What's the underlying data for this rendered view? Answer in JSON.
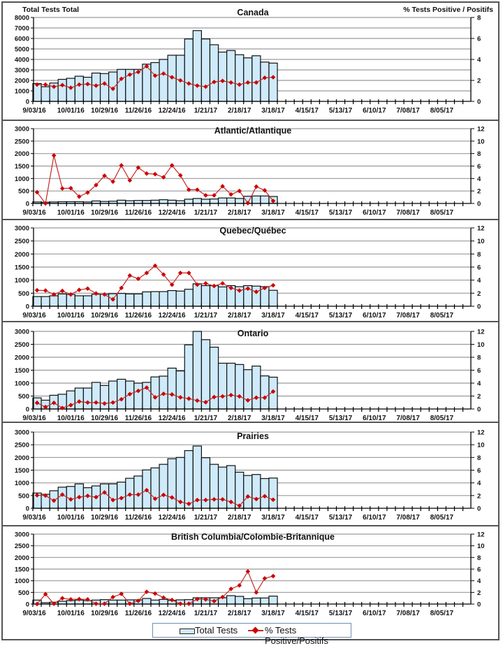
{
  "chart_data": [
    {
      "type": "bar",
      "title": "Canada",
      "ylabel": "Total Tests Total",
      "y2label": "% Tests Positive / Positifs",
      "ylim": [
        0,
        8000
      ],
      "yticks": [
        0,
        1000,
        2000,
        3000,
        4000,
        5000,
        6000,
        7000,
        8000
      ],
      "y2lim": [
        0,
        8
      ],
      "y2ticks": [
        0,
        2,
        4,
        6,
        8
      ],
      "series": [
        {
          "name": "Total Tests",
          "type": "bar",
          "values": [
            1700,
            1400,
            1750,
            2100,
            2200,
            2400,
            2300,
            2700,
            2650,
            2800,
            3050,
            3050,
            3050,
            3550,
            3700,
            4000,
            4400,
            4400,
            5950,
            6750,
            5950,
            5400,
            4700,
            4850,
            4450,
            4150,
            4350,
            3750,
            3650
          ]
        },
        {
          "name": "% Tests Positive/Positifs",
          "type": "line",
          "values": [
            1.6,
            1.6,
            1.4,
            1.55,
            1.3,
            1.6,
            1.65,
            1.5,
            1.7,
            1.2,
            2.15,
            2.55,
            2.8,
            3.35,
            2.45,
            2.65,
            2.3,
            2.0,
            1.7,
            1.5,
            1.4,
            1.85,
            1.95,
            1.8,
            1.6,
            1.8,
            1.8,
            2.25,
            2.3
          ]
        }
      ]
    },
    {
      "type": "bar",
      "title": "Atlantic/Atlantique",
      "ylim": [
        0,
        3000
      ],
      "yticks": [
        0,
        500,
        1000,
        1500,
        2000,
        2500,
        3000
      ],
      "y2lim": [
        0,
        12
      ],
      "y2ticks": [
        0,
        2,
        4,
        6,
        8,
        10,
        12
      ],
      "series": [
        {
          "name": "Total Tests",
          "type": "bar",
          "values": [
            60,
            50,
            60,
            70,
            70,
            70,
            60,
            100,
            80,
            90,
            130,
            110,
            120,
            120,
            130,
            150,
            130,
            110,
            170,
            200,
            170,
            180,
            220,
            220,
            200,
            290,
            300,
            300,
            280
          ]
        },
        {
          "name": "% Tests Positive/Positifs",
          "type": "line",
          "values": [
            1.8,
            0,
            7.7,
            2.4,
            2.45,
            1.1,
            1.75,
            2.95,
            4.45,
            3.5,
            6.1,
            3.7,
            5.75,
            4.8,
            4.7,
            4.2,
            6.1,
            4.5,
            2.2,
            2.2,
            1.3,
            1.3,
            2.75,
            1.45,
            2.0,
            0.05,
            2.7,
            2.1,
            0.4
          ]
        }
      ]
    },
    {
      "type": "bar",
      "title": "Quebec/Québec",
      "ylim": [
        0,
        3000
      ],
      "yticks": [
        0,
        500,
        1000,
        1500,
        2000,
        2500,
        3000
      ],
      "y2lim": [
        0,
        12
      ],
      "y2ticks": [
        0,
        2,
        4,
        6,
        8,
        10,
        12
      ],
      "series": [
        {
          "name": "Total Tests",
          "type": "bar",
          "values": [
            370,
            370,
            400,
            470,
            450,
            400,
            400,
            460,
            460,
            480,
            490,
            470,
            470,
            550,
            560,
            560,
            600,
            580,
            650,
            860,
            790,
            790,
            740,
            790,
            750,
            790,
            770,
            750,
            610
          ]
        },
        {
          "name": "% Tests Positive/Positifs",
          "type": "line",
          "values": [
            2.45,
            2.4,
            1.8,
            2.35,
            1.8,
            2.5,
            2.7,
            1.95,
            1.8,
            1.05,
            2.8,
            4.7,
            4.2,
            5.1,
            6.2,
            4.85,
            3.3,
            5.1,
            5.1,
            3.3,
            3.5,
            3.1,
            3.5,
            2.8,
            2.4,
            2.7,
            2.2,
            2.8,
            3.2
          ]
        }
      ]
    },
    {
      "type": "bar",
      "title": "Ontario",
      "ylim": [
        0,
        3000
      ],
      "yticks": [
        0,
        500,
        1000,
        1500,
        2000,
        2500,
        3000
      ],
      "y2lim": [
        0,
        12
      ],
      "y2ticks": [
        0,
        2,
        4,
        6,
        8,
        10,
        12
      ],
      "series": [
        {
          "name": "Total Tests",
          "type": "bar",
          "values": [
            430,
            340,
            530,
            570,
            700,
            810,
            810,
            1030,
            910,
            1080,
            1150,
            1080,
            1000,
            1030,
            1240,
            1270,
            1580,
            1470,
            2480,
            3000,
            2680,
            2390,
            1770,
            1770,
            1720,
            1520,
            1660,
            1280,
            1230
          ]
        },
        {
          "name": "% Tests Positive/Positifs",
          "type": "line",
          "values": [
            0.95,
            0.3,
            0.95,
            0.15,
            0.6,
            1.15,
            1.0,
            1.0,
            0.85,
            1.0,
            1.5,
            2.3,
            2.8,
            3.3,
            1.8,
            2.35,
            2.25,
            1.8,
            1.6,
            1.3,
            1.05,
            1.85,
            1.95,
            2.15,
            1.95,
            1.35,
            1.75,
            1.75,
            2.7
          ]
        }
      ]
    },
    {
      "type": "bar",
      "title": "Prairies",
      "ylim": [
        0,
        3000
      ],
      "yticks": [
        0,
        500,
        1000,
        1500,
        2000,
        2500,
        3000
      ],
      "y2lim": [
        0,
        12
      ],
      "y2ticks": [
        0,
        2,
        4,
        6,
        8,
        10,
        12
      ],
      "series": [
        {
          "name": "Total Tests",
          "type": "bar",
          "values": [
            600,
            550,
            690,
            830,
            860,
            960,
            810,
            880,
            960,
            960,
            1030,
            1180,
            1270,
            1510,
            1590,
            1730,
            1950,
            2000,
            2270,
            2450,
            1990,
            1730,
            1620,
            1680,
            1420,
            1290,
            1330,
            1170,
            1190
          ]
        },
        {
          "name": "% Tests Positive/Positifs",
          "type": "line",
          "values": [
            2.05,
            2.0,
            1.2,
            2.15,
            1.4,
            1.75,
            1.95,
            1.75,
            2.5,
            1.3,
            1.6,
            2.15,
            2.15,
            2.85,
            1.5,
            2.1,
            1.7,
            1.0,
            0.7,
            1.3,
            1.3,
            1.4,
            1.4,
            1.0,
            0.4,
            1.85,
            1.45,
            1.9,
            1.35
          ]
        }
      ]
    },
    {
      "type": "bar",
      "title": "British Columbia/Colombie-Britannique",
      "ylim": [
        0,
        3000
      ],
      "yticks": [
        0,
        500,
        1000,
        1500,
        2000,
        2500,
        3000
      ],
      "y2lim": [
        0,
        12
      ],
      "y2ticks": [
        0,
        2,
        4,
        6,
        8,
        10,
        12
      ],
      "series": [
        {
          "name": "Total Tests",
          "type": "bar",
          "values": [
            170,
            60,
            80,
            120,
            150,
            170,
            150,
            170,
            190,
            170,
            170,
            180,
            180,
            240,
            170,
            200,
            160,
            180,
            190,
            270,
            270,
            270,
            270,
            360,
            330,
            230,
            260,
            260,
            340
          ]
        },
        {
          "name": "% Tests Positive/Positifs",
          "type": "line",
          "values": [
            0.0,
            1.7,
            0.05,
            1.0,
            0.8,
            0.85,
            0.8,
            0.05,
            0.05,
            1.2,
            1.75,
            0.05,
            0.55,
            2.1,
            1.8,
            1.1,
            0.7,
            0.05,
            0.05,
            0.85,
            0.8,
            0.5,
            1.2,
            2.6,
            3.2,
            5.6,
            2.0,
            4.4,
            4.8
          ]
        }
      ]
    }
  ],
  "x_axis": {
    "weeks": 52,
    "tick_labels": [
      "9/03/16",
      "10/01/16",
      "10/29/16",
      "11/26/16",
      "12/24/16",
      "1/21/17",
      "2/18/17",
      "3/18/17",
      "4/15/17",
      "5/13/17",
      "6/10/17",
      "7/08/17",
      "8/05/17"
    ],
    "label_every_weeks": 4
  },
  "legend": {
    "position": "bottom-center",
    "bar_label": "Total Tests",
    "line_label": "% Tests Positive/Positifs"
  },
  "colors": {
    "bar_fill": "#cfeafa",
    "bar_stroke": "#111111",
    "line": "#c62828",
    "marker": "#cc0000",
    "grid": "#9a9a9a"
  }
}
